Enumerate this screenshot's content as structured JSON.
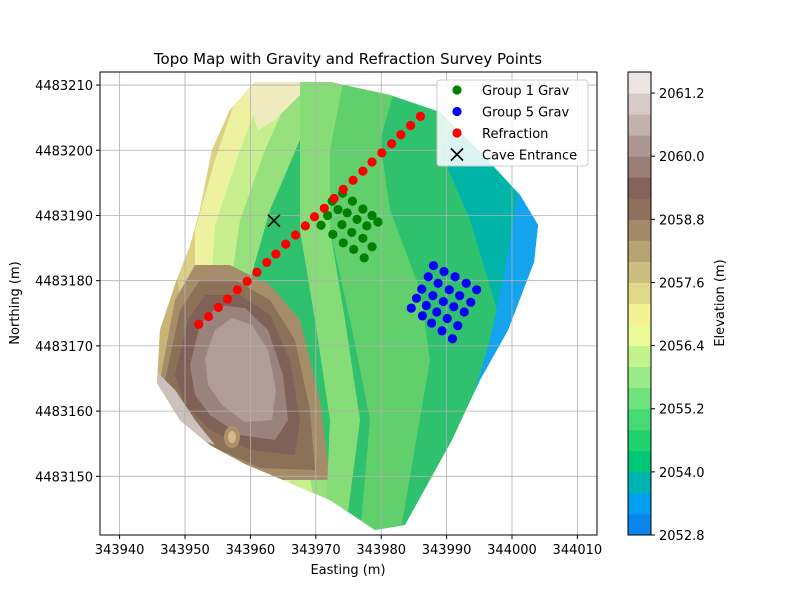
{
  "chart_data": {
    "type": "contour-scatter",
    "title": "Topo Map with Gravity and Refraction Survey Points",
    "xlabel": "Easting (m)",
    "ylabel": "Northing (m)",
    "xlim": [
      343937,
      344013
    ],
    "ylim": [
      4483141,
      4483212
    ],
    "xticks": [
      343940,
      343950,
      343960,
      343970,
      343980,
      343990,
      344000,
      344010
    ],
    "yticks": [
      4483150,
      4483160,
      4483170,
      4483180,
      4483190,
      4483200,
      4483210
    ],
    "grid": true,
    "legend_position": "top-right",
    "colorbar": {
      "label": "Elevation (m)",
      "range": [
        2052.8,
        2061.6
      ],
      "ticks": [
        2052.8,
        2054.0,
        2055.2,
        2056.4,
        2057.6,
        2058.8,
        2060.0,
        2061.2
      ],
      "tick_labels": [
        "2052.8",
        "2054.0",
        "2055.2",
        "2056.4",
        "2057.6",
        "2058.8",
        "2060.0",
        "2061.2"
      ],
      "colormap": "terrain",
      "levels": 22
    },
    "series": [
      {
        "name": "Group 1 Grav",
        "color": "#008000",
        "marker": "circle",
        "points": [
          [
            343972.5,
            4483192.2
          ],
          [
            343974.1,
            4483193.4
          ],
          [
            343975.6,
            4483192.2
          ],
          [
            343977.2,
            4483191.0
          ],
          [
            343978.6,
            4483190.0
          ],
          [
            343979.5,
            4483189.0
          ],
          [
            343971.8,
            4483190.0
          ],
          [
            343973.4,
            4483190.9
          ],
          [
            343974.8,
            4483190.4
          ],
          [
            343976.3,
            4483189.4
          ],
          [
            343977.8,
            4483188.4
          ],
          [
            343970.8,
            4483188.5
          ],
          [
            343972.6,
            4483187.1
          ],
          [
            343974.0,
            4483188.6
          ],
          [
            343975.5,
            4483187.4
          ],
          [
            343977.2,
            4483186.5
          ],
          [
            343974.2,
            4483185.8
          ],
          [
            343975.8,
            4483184.8
          ],
          [
            343977.4,
            4483183.5
          ],
          [
            343978.6,
            4483185.2
          ]
        ]
      },
      {
        "name": "Group 5 Grav",
        "color": "#0000ff",
        "marker": "circle",
        "points": [
          [
            343988.0,
            4483182.3
          ],
          [
            343989.6,
            4483181.4
          ],
          [
            343991.3,
            4483180.6
          ],
          [
            343993.0,
            4483179.6
          ],
          [
            343994.6,
            4483178.6
          ],
          [
            343987.2,
            4483180.6
          ],
          [
            343988.7,
            4483179.6
          ],
          [
            343990.4,
            4483178.6
          ],
          [
            343992.0,
            4483177.7
          ],
          [
            343993.7,
            4483176.7
          ],
          [
            343986.2,
            4483178.7
          ],
          [
            343987.9,
            4483177.7
          ],
          [
            343989.5,
            4483176.8
          ],
          [
            343991.1,
            4483176.0
          ],
          [
            343992.7,
            4483175.2
          ],
          [
            343985.4,
            4483177.3
          ],
          [
            343986.9,
            4483176.2
          ],
          [
            343988.5,
            4483175.2
          ],
          [
            343990.1,
            4483174.2
          ],
          [
            343991.7,
            4483173.1
          ],
          [
            343984.6,
            4483175.8
          ],
          [
            343986.3,
            4483174.6
          ],
          [
            343987.7,
            4483173.5
          ],
          [
            343989.3,
            4483172.3
          ],
          [
            343990.9,
            4483171.1
          ]
        ]
      },
      {
        "name": "Refraction",
        "color": "#ff0000",
        "marker": "circle",
        "points": [
          [
            343952.1,
            4483173.3
          ],
          [
            343953.6,
            4483174.5
          ],
          [
            343955.1,
            4483175.9
          ],
          [
            343956.5,
            4483177.2
          ],
          [
            343958.0,
            4483178.6
          ],
          [
            343959.5,
            4483179.9
          ],
          [
            343961.0,
            4483181.3
          ],
          [
            343962.5,
            4483182.8
          ],
          [
            343963.9,
            4483184.1
          ],
          [
            343965.4,
            4483185.6
          ],
          [
            343966.9,
            4483187.0
          ],
          [
            343968.4,
            4483188.4
          ],
          [
            343969.8,
            4483189.8
          ],
          [
            343971.3,
            4483191.1
          ],
          [
            343972.8,
            4483192.6
          ],
          [
            343974.2,
            4483194.0
          ],
          [
            343975.7,
            4483195.4
          ],
          [
            343977.2,
            4483196.8
          ],
          [
            343978.6,
            4483198.2
          ],
          [
            343980.1,
            4483199.6
          ],
          [
            343981.6,
            4483201.0
          ],
          [
            343983.0,
            4483202.4
          ],
          [
            343984.5,
            4483203.8
          ],
          [
            343986.0,
            4483205.2
          ]
        ]
      },
      {
        "name": "Cave Entrance",
        "color": "#000000",
        "marker": "x",
        "points": [
          [
            343963.6,
            4483189.2
          ]
        ]
      }
    ]
  }
}
